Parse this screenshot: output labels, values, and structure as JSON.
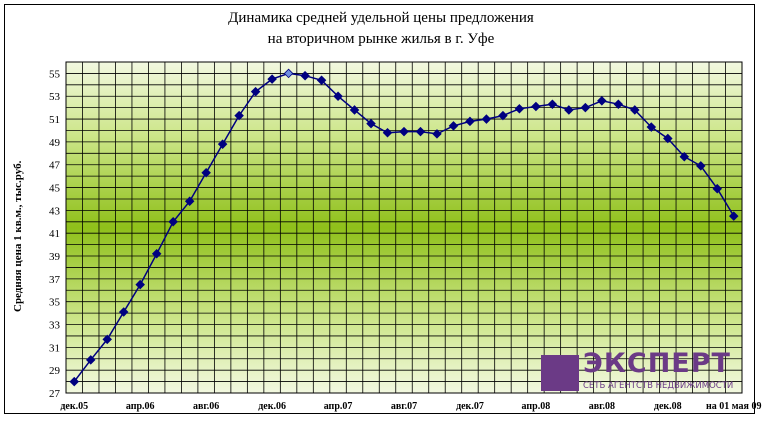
{
  "chart_data": {
    "type": "line",
    "title_line1": "Динамика средней удельной цены предложения",
    "title_line2": "на вторичном рынке жилья в г. Уфе",
    "ylabel": "Средняя цена 1 кв.м., тыс.руб.",
    "xlabel": "",
    "ylim": [
      27,
      56
    ],
    "yticks": [
      27,
      29,
      31,
      33,
      35,
      37,
      39,
      41,
      43,
      45,
      47,
      49,
      51,
      53,
      55
    ],
    "xtick_labels": [
      "дек.05",
      "апр.06",
      "авг.06",
      "дек.06",
      "апр.07",
      "авг.07",
      "дек.07",
      "апр.08",
      "авг.08",
      "дек.08",
      "на 01 мая 09"
    ],
    "grid": true,
    "series": [
      {
        "values": [
          28.0,
          29.9,
          31.7,
          34.1,
          36.5,
          39.2,
          42.0,
          43.8,
          46.3,
          48.8,
          51.3,
          53.4,
          54.5,
          55.0,
          54.8,
          54.4,
          53.0,
          51.8,
          50.6,
          49.8,
          49.9,
          49.9,
          49.7,
          50.4,
          50.8,
          51.0,
          51.3,
          51.9,
          52.1,
          52.3,
          51.8,
          52.0,
          52.6,
          52.3,
          51.8,
          50.3,
          49.3,
          47.7,
          46.9,
          44.9,
          42.5
        ],
        "highlight_index": 13,
        "color": "#000080",
        "highlight_color": "#6f8fe0"
      }
    ]
  },
  "logo": {
    "name": "ЭКСПЕРТ",
    "subtitle": "СЕТЬ АГЕНТСТВ НЕДВИЖИМОСТИ"
  }
}
